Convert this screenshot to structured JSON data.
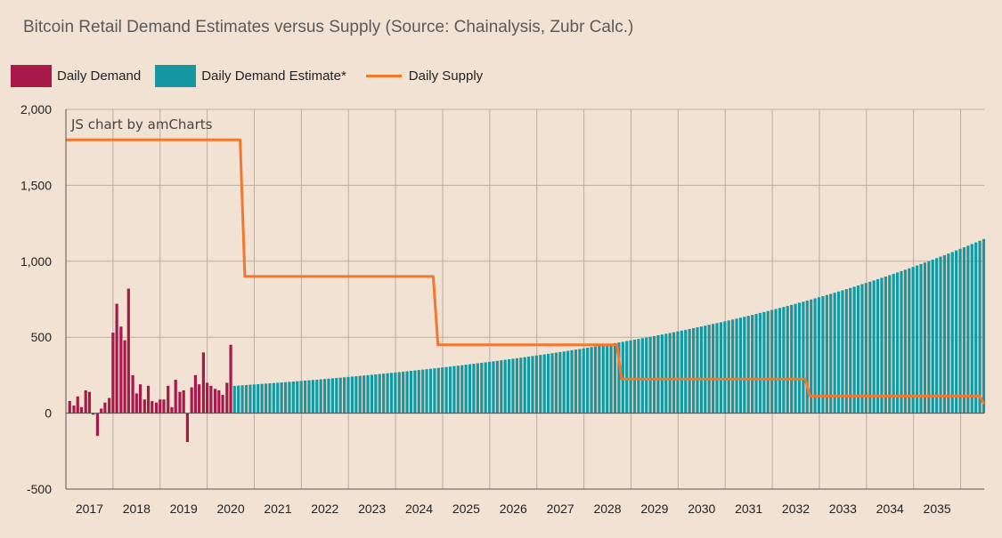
{
  "title": "Bitcoin Retail Demand Estimates versus Supply (Source: Chainalysis, Zubr Calc.)",
  "credit": "JS chart by amCharts",
  "colors": {
    "demand": "#a8184a",
    "estimate": "#1598a2",
    "supply": "#f4772d",
    "grid": "#b9ada3",
    "axis": "#555555",
    "background": "#f2e2d3"
  },
  "chart_data": {
    "type": "bar",
    "title": "Bitcoin Retail Demand Estimates versus Supply (Source: Chainalysis, Zubr Calc.)",
    "xlabel": "",
    "ylabel": "",
    "ylim": [
      -500,
      2000
    ],
    "xlim": [
      2016.5,
      2036.0
    ],
    "grid": true,
    "legend_position": "top-left",
    "y_ticks": [
      -500,
      0,
      500,
      1000,
      1500,
      2000
    ],
    "y_tick_labels": [
      "-500",
      "0",
      "500",
      "1,000",
      "1,500",
      "2,000"
    ],
    "x_tick_labels": [
      "2017",
      "2018",
      "2019",
      "2020",
      "2021",
      "2022",
      "2023",
      "2024",
      "2025",
      "2026",
      "2027",
      "2028",
      "2029",
      "2030",
      "2031",
      "2032",
      "2033",
      "2034",
      "2035"
    ],
    "series": [
      {
        "name": "Daily Demand",
        "type": "bar",
        "x": [
          2016.58,
          2016.67,
          2016.75,
          2016.83,
          2016.92,
          2017.0,
          2017.08,
          2017.17,
          2017.25,
          2017.33,
          2017.42,
          2017.5,
          2017.58,
          2017.67,
          2017.75,
          2017.83,
          2017.92,
          2018.0,
          2018.08,
          2018.17,
          2018.25,
          2018.33,
          2018.42,
          2018.5,
          2018.58,
          2018.67,
          2018.75,
          2018.83,
          2018.92,
          2019.0,
          2019.08,
          2019.17,
          2019.25,
          2019.33,
          2019.42,
          2019.5,
          2019.58,
          2019.67,
          2019.75,
          2019.83,
          2019.92,
          2020.0
        ],
        "values": [
          80,
          50,
          110,
          40,
          150,
          140,
          -10,
          -150,
          30,
          70,
          100,
          530,
          720,
          570,
          480,
          820,
          250,
          130,
          190,
          90,
          180,
          80,
          70,
          90,
          90,
          180,
          40,
          220,
          140,
          150,
          -190,
          170,
          250,
          190,
          400,
          200,
          180,
          160,
          150,
          120,
          200,
          450
        ]
      },
      {
        "name": "Daily Demand Estimate*",
        "type": "bar",
        "start_x": 2020.08,
        "step_years": 0.0833,
        "start_value": 180,
        "end_value": 1145,
        "values_sampled": {
          "2020.5": 180,
          "2021.5": 200,
          "2022.5": 225,
          "2023.5": 255,
          "2024.5": 300,
          "2025.5": 345,
          "2026.5": 390,
          "2027.5": 435,
          "2028.5": 480,
          "2029.5": 545,
          "2030.5": 610,
          "2031.5": 690,
          "2032.5": 770,
          "2033.5": 860,
          "2034.5": 965,
          "2035.5": 1120,
          "2036.0": 1145
        }
      },
      {
        "name": "Daily Supply",
        "type": "step-line",
        "x": [
          2016.5,
          2020.2,
          2020.3,
          2024.3,
          2024.4,
          2028.2,
          2028.3,
          2032.2,
          2032.3,
          2035.9,
          2036.0
        ],
        "values": [
          1800,
          1800,
          900,
          900,
          450,
          450,
          225,
          225,
          112.5,
          112.5,
          60
        ]
      }
    ]
  }
}
